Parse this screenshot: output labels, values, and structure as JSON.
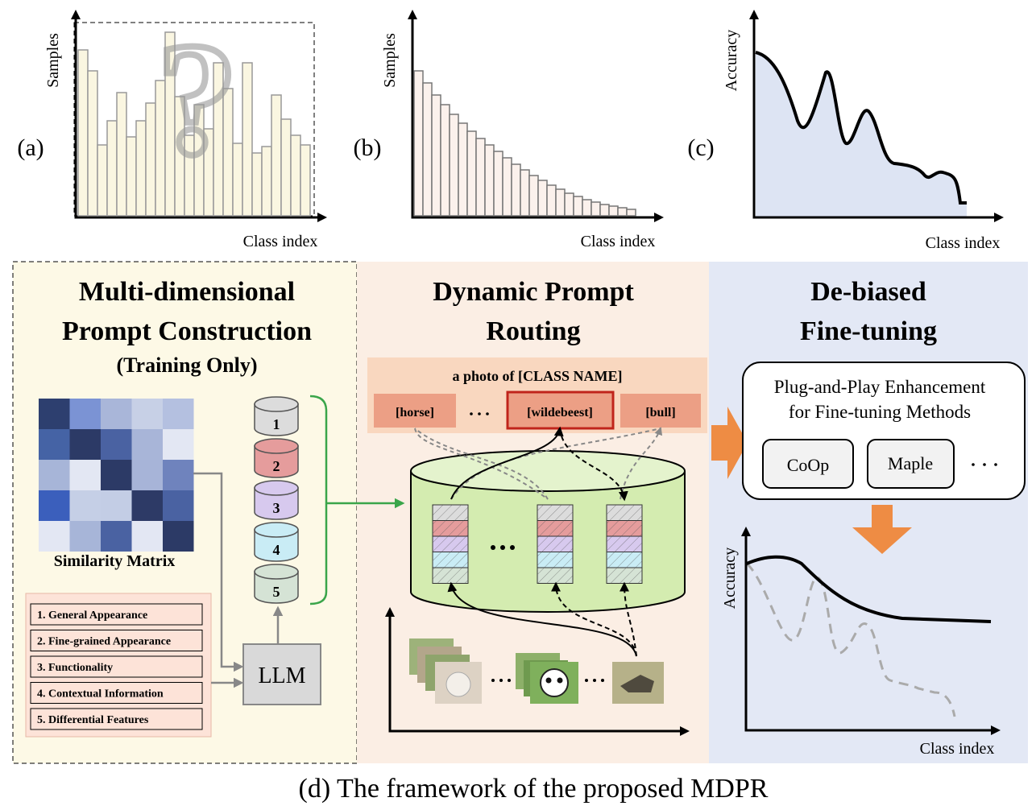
{
  "panels": [
    {
      "label": "(a)",
      "y_label": "Samples",
      "x_label": "Class index",
      "values": [
        206,
        180,
        88,
        118,
        153,
        98,
        118,
        140,
        168,
        228,
        148,
        100,
        138,
        108,
        190,
        158,
        90,
        190,
        78,
        86,
        150,
        120,
        100,
        88
      ]
    },
    {
      "label": "(b)",
      "y_label": "Samples",
      "x_label": "Class index",
      "values": [
        180,
        165,
        150,
        138,
        126,
        115,
        105,
        96,
        88,
        80,
        72,
        64,
        57,
        50,
        44,
        38,
        33,
        28,
        24,
        20,
        17,
        14,
        12,
        10,
        8
      ]
    },
    {
      "label": "(c)",
      "y_label": "Accuracy",
      "x_label": "Class index"
    }
  ],
  "construction": {
    "title_line1": "Multi-dimensional",
    "title_line2": "Prompt Construction",
    "subtitle": "(Training Only)",
    "matrix_label": "Similarity Matrix",
    "aspects": [
      "1. General Appearance",
      "2. Fine-grained Appearance",
      "3. Functionality",
      "4. Contextual Information",
      "5. Differential Features"
    ],
    "llm": "LLM",
    "banks": [
      "1",
      "2",
      "3",
      "4",
      "5"
    ]
  },
  "routing": {
    "title_line1": "Dynamic Prompt",
    "title_line2": "Routing",
    "template": "a photo of [CLASS NAME]",
    "classes": [
      "[horse]",
      "[wildebeest]",
      "[bull]"
    ]
  },
  "debiased": {
    "title_line1": "De-biased",
    "title_line2": "Fine-tuning",
    "box_line1": "Plug-and-Play Enhancement",
    "box_line2": "for Fine-tuning Methods",
    "methods": [
      "CoOp",
      "Maple"
    ],
    "y_label": "Accuracy",
    "x_label": "Class index"
  },
  "caption": "(d) The framework of the proposed MDPR"
}
